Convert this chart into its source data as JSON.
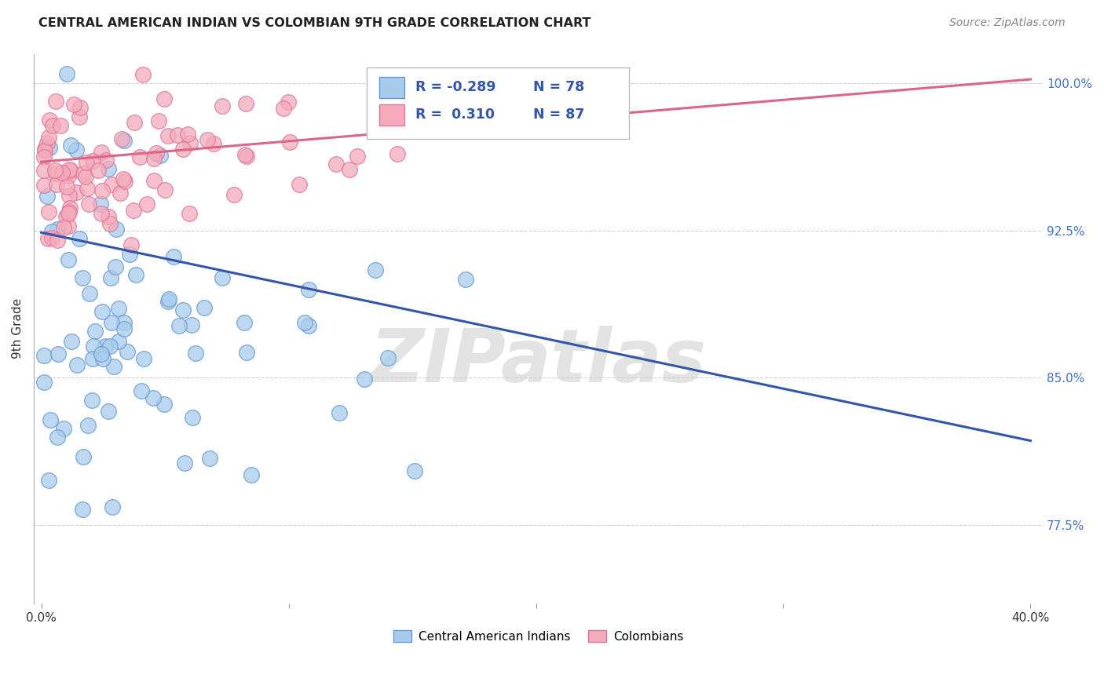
{
  "title": "CENTRAL AMERICAN INDIAN VS COLOMBIAN 9TH GRADE CORRELATION CHART",
  "source": "Source: ZipAtlas.com",
  "ylabel": "9th Grade",
  "ylim": [
    0.735,
    1.015
  ],
  "xlim": [
    -0.003,
    0.405
  ],
  "yticks": [
    0.775,
    0.85,
    0.925,
    1.0
  ],
  "ytick_labels": [
    "77.5%",
    "85.0%",
    "92.5%",
    "100.0%"
  ],
  "xtick_positions": [
    0.0,
    0.1,
    0.2,
    0.3,
    0.4
  ],
  "xtick_labels": [
    "0.0%",
    "",
    "",
    "",
    "40.0%"
  ],
  "blue_R": -0.289,
  "blue_N": 78,
  "pink_R": 0.31,
  "pink_N": 87,
  "blue_color": "#A8CCEE",
  "pink_color": "#F4AABB",
  "blue_edge_color": "#6699CC",
  "pink_edge_color": "#DD7799",
  "blue_line_color": "#3355AA",
  "pink_line_color": "#DD6688",
  "watermark_text": "ZIPatlas",
  "legend_R_blue": "R = -0.289",
  "legend_N_blue": "N = 78",
  "legend_R_pink": "R =  0.310",
  "legend_N_pink": "N = 87",
  "blue_line_x0": 0.0,
  "blue_line_y0": 0.924,
  "blue_line_x1": 0.4,
  "blue_line_y1": 0.818,
  "pink_line_x0": 0.0,
  "pink_line_y0": 0.96,
  "pink_line_x1": 0.4,
  "pink_line_y1": 1.002
}
